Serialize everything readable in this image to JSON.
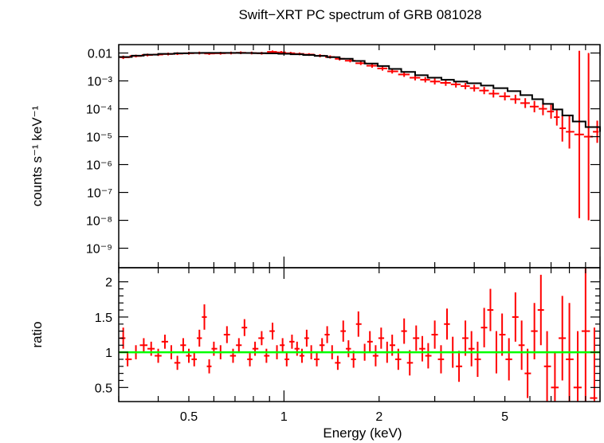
{
  "chart_data": [
    {
      "panel": "spectrum",
      "type": "scatter",
      "title": "Swift−XRT PC spectrum of GRB 081028",
      "xlabel": "",
      "ylabel": "counts s⁻¹ keV⁻¹",
      "x_scale": "log",
      "y_scale": "log",
      "xlim": [
        0.3,
        10
      ],
      "ylim": [
        2e-10,
        0.02
      ],
      "y_tick_labels": [
        "0.01",
        "10⁻³",
        "10⁻⁴",
        "10⁻⁵",
        "10⁻⁶",
        "10⁻⁷",
        "10⁻⁸",
        "10⁻⁹"
      ],
      "y_tick_values": [
        0.01,
        0.001,
        0.0001,
        1e-05,
        1e-06,
        1e-07,
        1e-08,
        1e-09
      ],
      "series": [
        {
          "role": "data",
          "color": "#ff0000",
          "x": [
            0.31,
            0.34,
            0.37,
            0.4,
            0.43,
            0.46,
            0.5,
            0.54,
            0.58,
            0.63,
            0.68,
            0.73,
            0.79,
            0.85,
            0.92,
            0.98,
            1.05,
            1.12,
            1.2,
            1.3,
            1.4,
            1.5,
            1.62,
            1.75,
            1.9,
            2.05,
            2.2,
            2.4,
            2.6,
            2.8,
            3.0,
            3.25,
            3.5,
            3.75,
            4.0,
            4.3,
            4.6,
            5.0,
            5.4,
            5.8,
            6.2,
            6.6,
            7.0,
            7.3,
            7.6,
            8.0,
            8.6,
            9.2,
            9.8
          ],
          "y": [
            0.007,
            0.0078,
            0.0085,
            0.0088,
            0.0092,
            0.0095,
            0.0098,
            0.01,
            0.0096,
            0.0098,
            0.01,
            0.0102,
            0.01,
            0.0098,
            0.011,
            0.0105,
            0.0098,
            0.0093,
            0.0088,
            0.008,
            0.0072,
            0.0062,
            0.0053,
            0.0043,
            0.0035,
            0.0028,
            0.0022,
            0.0017,
            0.0013,
            0.0011,
            0.00095,
            0.00085,
            0.00075,
            0.00065,
            0.00055,
            0.00045,
            0.00035,
            0.00028,
            0.00022,
            0.00016,
            0.00012,
            0.0001,
            8e-05,
            5e-05,
            2e-05,
            1.5e-05,
            1.2e-05,
            1e-05,
            1.5e-05
          ],
          "yerr_factor": [
            1.15,
            1.12,
            1.12,
            1.12,
            1.12,
            1.12,
            1.12,
            1.12,
            1.12,
            1.12,
            1.12,
            1.12,
            1.12,
            1.12,
            1.12,
            1.12,
            1.12,
            1.12,
            1.12,
            1.14,
            1.14,
            1.15,
            1.15,
            1.16,
            1.18,
            1.2,
            1.2,
            1.22,
            1.25,
            1.25,
            1.28,
            1.28,
            1.3,
            1.3,
            1.32,
            1.35,
            1.38,
            1.4,
            1.45,
            1.5,
            1.6,
            1.7,
            1.8,
            2.0,
            3.0,
            4.0,
            1000,
            1000,
            2.5
          ]
        },
        {
          "role": "model",
          "color": "#000000",
          "x": [
            0.3,
            0.33,
            0.36,
            0.4,
            0.45,
            0.5,
            0.55,
            0.6,
            0.66,
            0.72,
            0.8,
            0.88,
            0.96,
            1.05,
            1.15,
            1.25,
            1.37,
            1.5,
            1.65,
            1.8,
            1.98,
            2.15,
            2.35,
            2.6,
            2.85,
            3.15,
            3.45,
            3.8,
            4.2,
            4.6,
            5.1,
            5.6,
            6.1,
            6.6,
            7.1,
            7.6,
            8.2,
            9.0,
            10.0
          ],
          "y": [
            0.0072,
            0.008,
            0.0087,
            0.0093,
            0.0098,
            0.01,
            0.0101,
            0.0101,
            0.0101,
            0.01,
            0.0099,
            0.0097,
            0.0094,
            0.009,
            0.0085,
            0.0079,
            0.0071,
            0.0062,
            0.0052,
            0.0042,
            0.0034,
            0.0027,
            0.0021,
            0.0016,
            0.0013,
            0.0011,
            0.00095,
            0.00082,
            0.00068,
            0.00055,
            0.00043,
            0.00031,
            0.00022,
            0.00015,
            9.5e-05,
            5.8e-05,
            3.5e-05,
            2.2e-05,
            1.5e-05
          ]
        }
      ]
    },
    {
      "panel": "ratio",
      "type": "scatter",
      "xlabel": "Energy (keV)",
      "ylabel": "ratio",
      "x_scale": "log",
      "y_scale": "linear",
      "xlim": [
        0.3,
        10
      ],
      "ylim": [
        0.3,
        2.2
      ],
      "x_tick_labels": [
        "0.5",
        "1",
        "2",
        "5"
      ],
      "x_tick_values": [
        0.5,
        1,
        2,
        5
      ],
      "y_tick_labels": [
        "0.5",
        "1",
        "1.5",
        "2"
      ],
      "y_tick_values": [
        0.5,
        1,
        1.5,
        2
      ],
      "reference_line": {
        "y": 1,
        "color": "#00ff00"
      },
      "series": [
        {
          "role": "ratio",
          "color": "#ff0000",
          "x": [
            0.31,
            0.32,
            0.34,
            0.36,
            0.38,
            0.4,
            0.42,
            0.44,
            0.46,
            0.48,
            0.5,
            0.52,
            0.54,
            0.56,
            0.58,
            0.6,
            0.63,
            0.66,
            0.69,
            0.72,
            0.75,
            0.78,
            0.81,
            0.85,
            0.88,
            0.92,
            0.95,
            0.99,
            1.02,
            1.06,
            1.1,
            1.14,
            1.18,
            1.22,
            1.27,
            1.32,
            1.37,
            1.42,
            1.48,
            1.54,
            1.6,
            1.66,
            1.72,
            1.8,
            1.87,
            1.95,
            2.03,
            2.12,
            2.2,
            2.3,
            2.4,
            2.5,
            2.62,
            2.74,
            2.86,
            3.0,
            3.14,
            3.28,
            3.42,
            3.58,
            3.75,
            3.92,
            4.1,
            4.3,
            4.5,
            4.7,
            4.9,
            5.15,
            5.4,
            5.65,
            5.9,
            6.2,
            6.5,
            6.8,
            7.2,
            7.6,
            8.0,
            8.5,
            9.0,
            9.6
          ],
          "y": [
            1.2,
            0.9,
            1.0,
            1.1,
            1.05,
            0.95,
            1.15,
            1.0,
            0.85,
            1.1,
            0.95,
            0.9,
            1.2,
            1.5,
            0.8,
            1.05,
            1.0,
            1.25,
            0.95,
            1.1,
            1.35,
            0.9,
            1.05,
            1.2,
            0.95,
            1.3,
            1.0,
            1.1,
            0.9,
            1.15,
            1.05,
            0.95,
            1.2,
            1.0,
            0.9,
            1.1,
            1.25,
            1.0,
            0.85,
            1.3,
            1.05,
            0.9,
            1.4,
            1.0,
            1.15,
            0.95,
            1.2,
            1.0,
            1.1,
            0.9,
            1.3,
            0.85,
            1.2,
            1.05,
            0.95,
            1.25,
            0.9,
            1.4,
            1.0,
            0.8,
            1.2,
            1.05,
            0.9,
            1.35,
            1.6,
            1.0,
            1.25,
            0.9,
            1.5,
            1.1,
            0.7,
            1.3,
            1.6,
            0.8,
            0.5,
            1.2,
            0.9,
            0.5,
            1.3,
            0.35
          ],
          "yerr": [
            0.15,
            0.1,
            0.1,
            0.1,
            0.1,
            0.1,
            0.1,
            0.1,
            0.1,
            0.1,
            0.1,
            0.1,
            0.12,
            0.18,
            0.1,
            0.1,
            0.1,
            0.12,
            0.1,
            0.1,
            0.12,
            0.1,
            0.1,
            0.1,
            0.1,
            0.12,
            0.1,
            0.1,
            0.1,
            0.1,
            0.1,
            0.1,
            0.12,
            0.1,
            0.1,
            0.1,
            0.12,
            0.1,
            0.1,
            0.15,
            0.12,
            0.12,
            0.18,
            0.12,
            0.15,
            0.15,
            0.15,
            0.15,
            0.15,
            0.15,
            0.18,
            0.18,
            0.18,
            0.18,
            0.18,
            0.2,
            0.2,
            0.22,
            0.22,
            0.22,
            0.25,
            0.25,
            0.25,
            0.28,
            0.3,
            0.3,
            0.3,
            0.3,
            0.35,
            0.35,
            0.35,
            0.4,
            0.5,
            0.5,
            0.5,
            0.6,
            0.8,
            0.8,
            1.0,
            1.0
          ]
        }
      ]
    }
  ]
}
